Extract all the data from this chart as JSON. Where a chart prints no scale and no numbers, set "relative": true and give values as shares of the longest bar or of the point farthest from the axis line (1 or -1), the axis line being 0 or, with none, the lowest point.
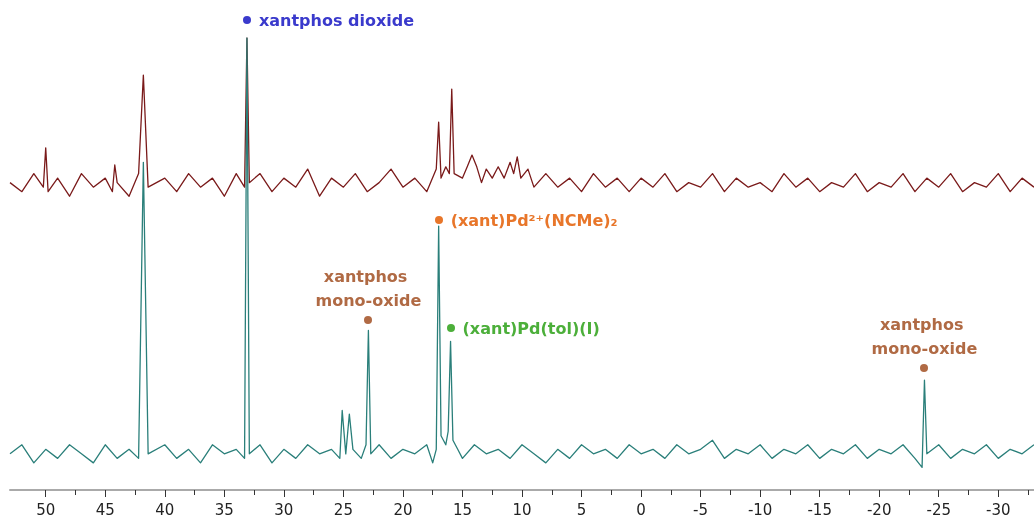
{
  "chart_data": {
    "type": "line",
    "relative": true,
    "grid": false,
    "marker": "none",
    "xlim": [
      53,
      -33
    ],
    "xticks": [
      50,
      {
        "value": 47.5,
        "label": null
      },
      45,
      {
        "value": 42.5,
        "label": null
      },
      40,
      {
        "value": 37.5,
        "label": null
      },
      35,
      {
        "value": 32.5,
        "label": null
      },
      30,
      {
        "value": 27.5,
        "label": null
      },
      25,
      {
        "value": 22.5,
        "label": null
      },
      20,
      {
        "value": 17.5,
        "label": null
      },
      15,
      {
        "value": 12.5,
        "label": null
      },
      10,
      {
        "value": 7.5,
        "label": null
      },
      5,
      {
        "value": 2.5,
        "label": null
      },
      0,
      {
        "value": -2.5,
        "label": null
      },
      -5,
      {
        "value": -7.5,
        "label": null
      },
      -10,
      {
        "value": -12.5,
        "label": null
      },
      -15,
      {
        "value": -17.5,
        "label": null
      },
      -20,
      {
        "value": -22.5,
        "label": null
      },
      -25,
      {
        "value": -27.5,
        "label": null
      },
      -30,
      {
        "value": -32.5,
        "label": null
      }
    ],
    "series": [
      {
        "color": "#7a1a1a",
        "x": [
          53,
          52,
          51,
          50.2,
          50,
          49.8,
          49,
          48,
          47,
          46,
          45,
          44.4,
          44.2,
          44,
          43,
          42.2,
          41.8,
          41.4,
          40,
          39,
          38,
          37,
          36,
          35,
          34,
          33.3,
          33.1,
          32.9,
          32,
          31,
          30,
          29,
          28,
          27,
          26,
          25,
          24,
          23,
          22,
          21,
          20,
          19,
          18,
          17.2,
          17,
          16.8,
          16.4,
          16.1,
          15.9,
          15.7,
          15,
          14.6,
          14.2,
          13.8,
          13.4,
          13,
          12.5,
          12,
          11.5,
          11,
          10.7,
          10.4,
          10.1,
          9.5,
          9,
          8,
          7,
          6,
          5,
          4,
          3,
          2,
          1,
          0,
          -1,
          -2,
          -3,
          -4,
          -5,
          -6,
          -7,
          -8,
          -9,
          -10,
          -11,
          -12,
          -13,
          -14,
          -15,
          -16,
          -17,
          -18,
          -19,
          -20,
          -21,
          -22,
          -23,
          -24,
          -25,
          -26,
          -27,
          -28,
          -29,
          -30,
          -31,
          -32,
          -33
        ],
        "values": [
          0.68,
          0.66,
          0.7,
          0.67,
          0.757,
          0.66,
          0.69,
          0.65,
          0.7,
          0.67,
          0.69,
          0.66,
          0.719,
          0.68,
          0.65,
          0.7,
          0.918,
          0.67,
          0.69,
          0.66,
          0.7,
          0.67,
          0.69,
          0.65,
          0.7,
          0.67,
          1,
          0.68,
          0.7,
          0.66,
          0.69,
          0.67,
          0.71,
          0.65,
          0.69,
          0.67,
          0.7,
          0.66,
          0.68,
          0.71,
          0.67,
          0.69,
          0.66,
          0.71,
          0.814,
          0.69,
          0.715,
          0.7,
          0.887,
          0.7,
          0.69,
          0.715,
          0.741,
          0.715,
          0.68,
          0.71,
          0.69,
          0.715,
          0.69,
          0.725,
          0.7,
          0.737,
          0.69,
          0.71,
          0.67,
          0.7,
          0.67,
          0.69,
          0.66,
          0.7,
          0.67,
          0.69,
          0.66,
          0.69,
          0.67,
          0.7,
          0.66,
          0.68,
          0.67,
          0.7,
          0.66,
          0.69,
          0.67,
          0.68,
          0.66,
          0.7,
          0.67,
          0.69,
          0.66,
          0.68,
          0.67,
          0.7,
          0.66,
          0.68,
          0.67,
          0.7,
          0.66,
          0.69,
          0.67,
          0.7,
          0.66,
          0.68,
          0.67,
          0.7,
          0.66,
          0.69,
          0.67
        ]
      },
      {
        "color": "#2a7f7a",
        "x": [
          53,
          52,
          51,
          50,
          49,
          48,
          47,
          46,
          45,
          44,
          43,
          42.2,
          41.8,
          41.4,
          40,
          39,
          38,
          37,
          36,
          35,
          34,
          33.3,
          33.1,
          32.9,
          32,
          31,
          30,
          29,
          28,
          27,
          26,
          25.3,
          25.1,
          24.8,
          24.5,
          24.2,
          23.5,
          23.1,
          22.9,
          22.7,
          22,
          21,
          20,
          19,
          18,
          17.5,
          17.2,
          17,
          16.8,
          16.4,
          16.2,
          16,
          15.8,
          15.4,
          15,
          14,
          13,
          12,
          11,
          10,
          9,
          8,
          7,
          6,
          5,
          4,
          3,
          2,
          1,
          0,
          -1,
          -2,
          -3,
          -4,
          -5,
          -6,
          -7,
          -8,
          -9,
          -10,
          -11,
          -12,
          -13,
          -14,
          -15,
          -16,
          -17,
          -18,
          -19,
          -20,
          -21,
          -22,
          -23,
          -23.6,
          -23.8,
          -24,
          -25,
          -26,
          -27,
          -28,
          -29,
          -30,
          -31,
          -32,
          -33
        ],
        "values": [
          0.08,
          0.1,
          0.06,
          0.09,
          0.07,
          0.1,
          0.08,
          0.06,
          0.1,
          0.07,
          0.09,
          0.07,
          0.725,
          0.08,
          0.1,
          0.07,
          0.09,
          0.06,
          0.1,
          0.08,
          0.09,
          0.07,
          1,
          0.08,
          0.1,
          0.06,
          0.09,
          0.07,
          0.1,
          0.08,
          0.09,
          0.07,
          0.176,
          0.08,
          0.168,
          0.09,
          0.07,
          0.1,
          0.353,
          0.08,
          0.1,
          0.07,
          0.09,
          0.08,
          0.1,
          0.06,
          0.09,
          0.584,
          0.12,
          0.1,
          0.13,
          0.329,
          0.11,
          0.09,
          0.07,
          0.1,
          0.08,
          0.09,
          0.07,
          0.1,
          0.08,
          0.06,
          0.09,
          0.07,
          0.1,
          0.08,
          0.09,
          0.07,
          0.1,
          0.08,
          0.09,
          0.07,
          0.1,
          0.08,
          0.09,
          0.11,
          0.07,
          0.09,
          0.08,
          0.1,
          0.07,
          0.09,
          0.08,
          0.1,
          0.07,
          0.09,
          0.08,
          0.1,
          0.07,
          0.09,
          0.08,
          0.1,
          0.07,
          0.05,
          0.243,
          0.08,
          0.1,
          0.07,
          0.09,
          0.08,
          0.1,
          0.07,
          0.09,
          0.08,
          0.1
        ]
      }
    ],
    "annotations": [
      {
        "text": "xantphos dioxide",
        "x": 33.1,
        "y": 1
      },
      {
        "text": "(xant)Pd²⁺(NCMe)₂",
        "x": 17,
        "y": 0.584
      },
      {
        "text": "xantphos mono-oxide",
        "x": 22.9,
        "y": 0.353
      },
      {
        "text": "(xant)Pd(tol)(I)",
        "x": 16,
        "y": 0.329
      },
      {
        "text": "xantphos mono-oxide",
        "x": -23.8,
        "y": 0.243
      }
    ]
  }
}
